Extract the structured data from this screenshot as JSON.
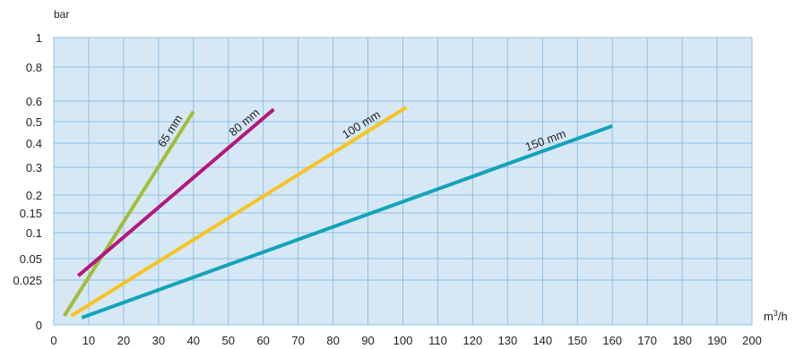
{
  "chart_data": {
    "type": "line",
    "ylabel": "bar",
    "xlabel": "m³/h",
    "xlim": [
      0,
      200
    ],
    "x_ticks": [
      0,
      10,
      20,
      30,
      40,
      50,
      60,
      70,
      80,
      90,
      100,
      110,
      120,
      130,
      140,
      150,
      160,
      170,
      180,
      190,
      200
    ],
    "y_ticks": [
      "0",
      "0.025",
      "0.05",
      "0.1",
      "0.15",
      "0.2",
      "0.3",
      "0.4",
      "0.5",
      "0.6",
      "0.8",
      "1"
    ],
    "y_scale": "categorical, unevenly spaced labels",
    "grid": true,
    "background_color": "#d6e8f6",
    "grid_color": "#8fc0e4",
    "series": [
      {
        "name": "65 mm",
        "color": "#a3bd37",
        "x": [
          3,
          40
        ],
        "y": [
          0.005,
          0.55
        ]
      },
      {
        "name": "80 mm",
        "color": "#b3177e",
        "x": [
          7,
          63
        ],
        "y": [
          0.03,
          0.56
        ]
      },
      {
        "name": "100 mm",
        "color": "#f6c422",
        "x": [
          5,
          101
        ],
        "y": [
          0.005,
          0.57
        ]
      },
      {
        "name": "150 mm",
        "color": "#12a3b9",
        "x": [
          8,
          160
        ],
        "y": [
          0.004,
          0.48
        ]
      }
    ]
  }
}
